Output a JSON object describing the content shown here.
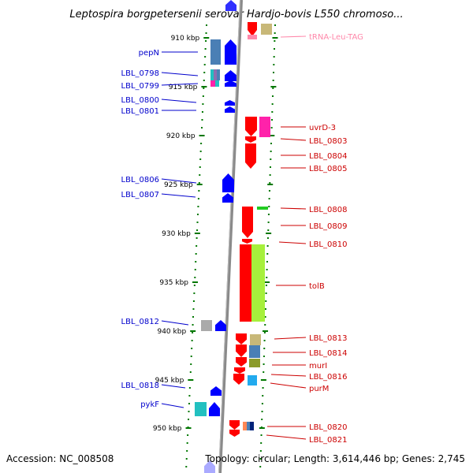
{
  "title": "Leptospira borgpetersenii serovar Hardjo-bovis L550 chromoso...",
  "footer": {
    "accession": "Accession: NC_008508",
    "summary": "Topology: circular; Length: 3,614,446 bp; Genes: 2,745"
  },
  "colors": {
    "forward_strand": "#ff0000",
    "reverse_strand": "#0000ff",
    "trna": "#ff88aa",
    "tick": "#007700",
    "backbone": "#888888"
  },
  "ticks": [
    "910 kbp",
    "915 kbp",
    "920 kbp",
    "925 kbp",
    "930 kbp",
    "935 kbp",
    "940 kbp",
    "945 kbp",
    "950 kbp"
  ],
  "left_labels": [
    "pepN",
    "LBL_0798",
    "LBL_0799",
    "LBL_0800",
    "LBL_0801",
    "LBL_0806",
    "LBL_0807",
    "LBL_0812",
    "LBL_0818",
    "pykF"
  ],
  "right_labels": [
    "tRNA-Leu-TAG",
    "uvrD-3",
    "LBL_0803",
    "LBL_0804",
    "LBL_0805",
    "LBL_0808",
    "LBL_0809",
    "LBL_0810",
    "tolB",
    "LBL_0813",
    "LBL_0814",
    "murI",
    "LBL_0816",
    "purM",
    "LBL_0820",
    "LBL_0821"
  ]
}
